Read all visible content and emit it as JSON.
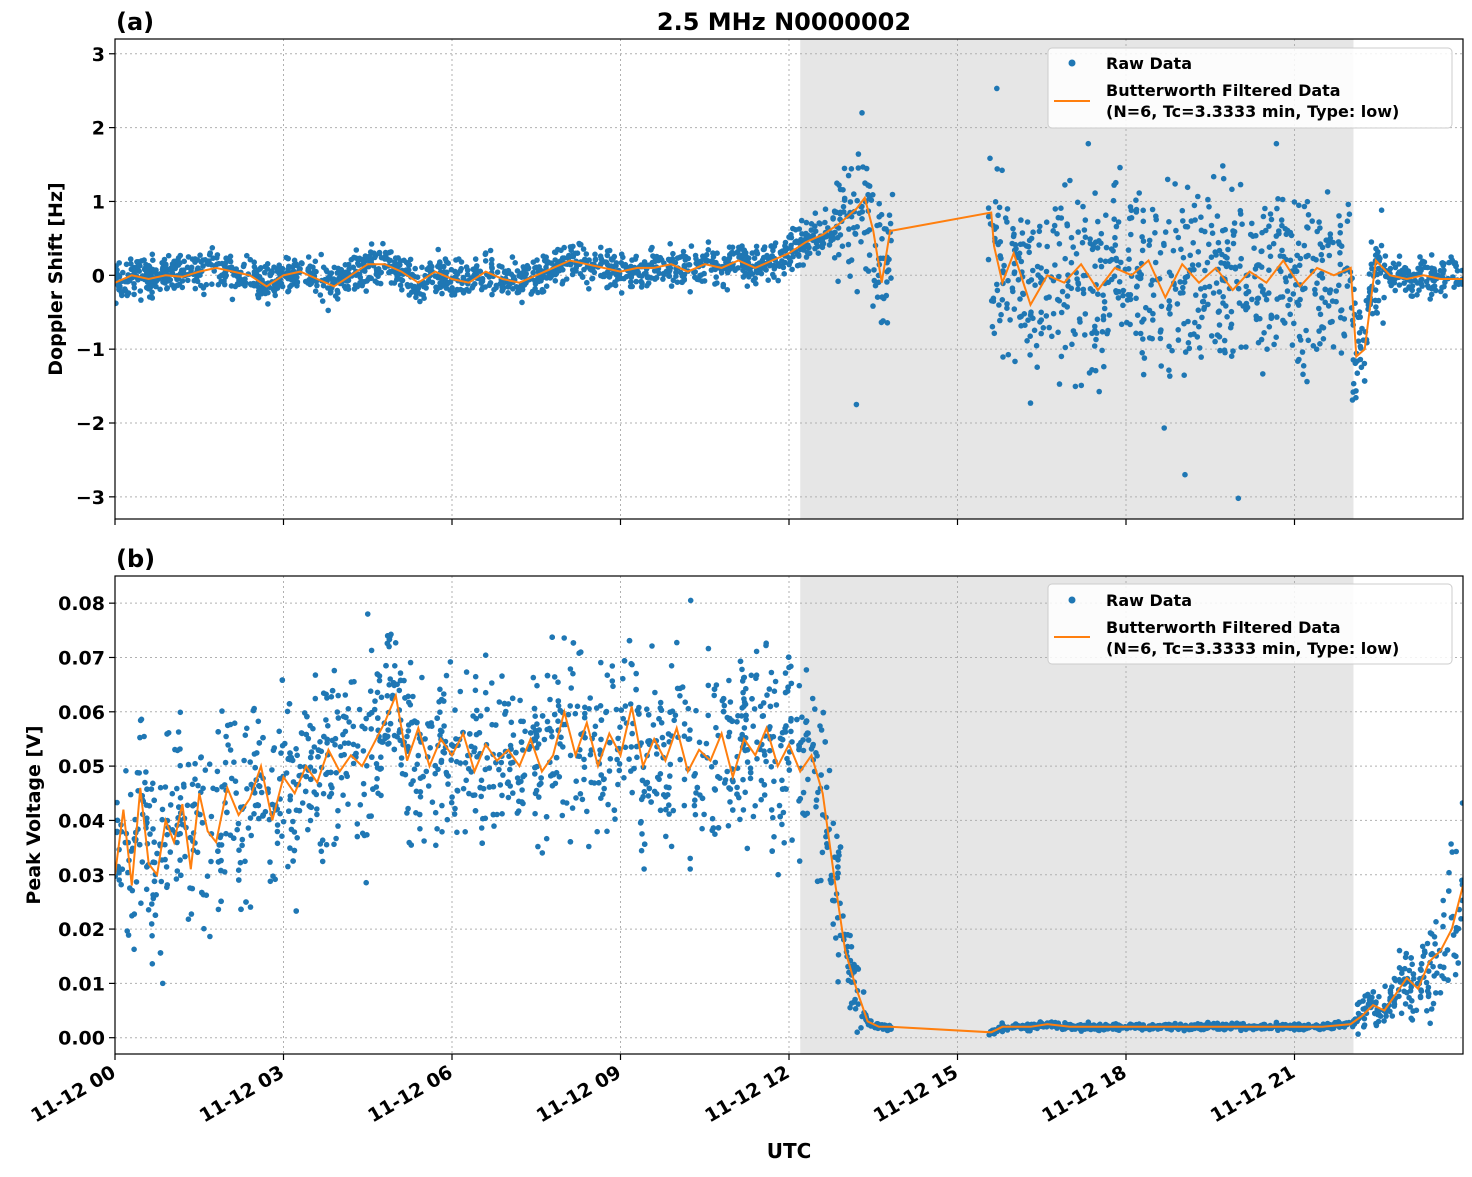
{
  "figure": {
    "title": "2.5 MHz N0000002",
    "xlabel": "UTC",
    "x_ticks": [
      "11-12 00",
      "11-12 03",
      "11-12 06",
      "11-12 09",
      "11-12 12",
      "11-12 15",
      "11-12 18",
      "11-12 21"
    ],
    "shaded_region_utc_hours": [
      12.2,
      22.05
    ],
    "colors": {
      "raw": "#1f77b4",
      "filtered": "#ff7f0e",
      "shade": "#e6e6e6",
      "grid": "#b0b0b0"
    }
  },
  "chart_data": [
    {
      "type": "scatter",
      "panel_label": "(a)",
      "title": "2.5 MHz N0000002",
      "xlabel": "",
      "ylabel": "Doppler Shift [Hz]",
      "x_unit": "UTC hours since 11-12 00",
      "xlim": [
        0,
        24
      ],
      "ylim": [
        -3.3,
        3.2
      ],
      "yticks": [
        -3,
        -2,
        -1,
        0,
        1,
        2,
        3
      ],
      "ytick_labels": [
        "−3",
        "−2",
        "−1",
        "0",
        "1",
        "2",
        "3"
      ],
      "grid": true,
      "legend_position": "top-right",
      "legend": [
        "Raw Data",
        "Butterworth Filtered Data",
        "(N=6, Tc=3.3333 min, Type: low)"
      ],
      "series": [
        {
          "name": "Butterworth Filtered Data",
          "kind": "line",
          "x": [
            0,
            0.3,
            0.6,
            0.9,
            1.2,
            1.5,
            1.8,
            2.1,
            2.4,
            2.7,
            3.0,
            3.3,
            3.6,
            3.9,
            4.2,
            4.5,
            4.8,
            5.1,
            5.4,
            5.7,
            6.0,
            6.3,
            6.6,
            6.9,
            7.2,
            7.5,
            7.8,
            8.1,
            8.4,
            8.7,
            9.0,
            9.3,
            9.6,
            9.9,
            10.2,
            10.5,
            10.8,
            11.1,
            11.4,
            11.7,
            12.0,
            12.3,
            12.6,
            12.9,
            13.2,
            13.35,
            13.5,
            13.65,
            13.8,
            15.6,
            15.65,
            15.8,
            16.0,
            16.3,
            16.6,
            16.9,
            17.2,
            17.5,
            17.8,
            18.1,
            18.4,
            18.7,
            19.0,
            19.3,
            19.6,
            19.9,
            20.2,
            20.5,
            20.8,
            21.1,
            21.4,
            21.7,
            22.0,
            22.1,
            22.25,
            22.45,
            22.7,
            23.0,
            23.3,
            23.6,
            24.0
          ],
          "y": [
            -0.1,
            0.0,
            -0.05,
            0.0,
            -0.02,
            0.05,
            0.1,
            0.05,
            0.0,
            -0.15,
            0.0,
            0.05,
            -0.05,
            -0.15,
            0.0,
            0.15,
            0.15,
            0.05,
            -0.1,
            0.05,
            -0.05,
            -0.1,
            0.05,
            -0.05,
            -0.1,
            0.0,
            0.1,
            0.2,
            0.15,
            0.1,
            0.05,
            0.1,
            0.1,
            0.15,
            0.05,
            0.15,
            0.1,
            0.2,
            0.1,
            0.2,
            0.3,
            0.45,
            0.55,
            0.7,
            0.9,
            1.05,
            0.6,
            -0.1,
            0.6,
            0.85,
            0.4,
            -0.1,
            0.3,
            -0.4,
            0.0,
            -0.1,
            0.15,
            -0.2,
            0.1,
            0.0,
            0.2,
            -0.3,
            0.15,
            -0.1,
            0.1,
            -0.2,
            0.05,
            -0.1,
            0.2,
            -0.15,
            0.1,
            0.0,
            0.1,
            -1.1,
            -1.0,
            0.2,
            0.0,
            -0.05,
            0.0,
            -0.05,
            -0.05
          ]
        },
        {
          "name": "Raw Data",
          "kind": "scatter",
          "density": "dense points surrounding the filtered trace; spread about ±0.3 Hz outside the shaded interval and about ±1.8 Hz between 15.6 h and 22 h",
          "notable_points": [
            {
              "x": 15.7,
              "y": 2.53
            },
            {
              "x": 19.05,
              "y": -2.7
            },
            {
              "x": 20.0,
              "y": -3.02
            },
            {
              "x": 13.3,
              "y": 2.2
            },
            {
              "x": 13.2,
              "y": -1.75
            }
          ]
        }
      ]
    },
    {
      "type": "scatter",
      "panel_label": "(b)",
      "title": "",
      "xlabel": "UTC",
      "ylabel": "Peak Voltage [V]",
      "x_unit": "UTC hours since 11-12 00",
      "xlim": [
        0,
        24
      ],
      "ylim": [
        -0.003,
        0.085
      ],
      "yticks": [
        0.0,
        0.01,
        0.02,
        0.03,
        0.04,
        0.05,
        0.06,
        0.07,
        0.08
      ],
      "ytick_labels": [
        "0.00",
        "0.01",
        "0.02",
        "0.03",
        "0.04",
        "0.05",
        "0.06",
        "0.07",
        "0.08"
      ],
      "grid": true,
      "legend_position": "top-right",
      "legend": [
        "Raw Data",
        "Butterworth Filtered Data",
        "(N=6, Tc=3.3333 min, Type: low)"
      ],
      "series": [
        {
          "name": "Butterworth Filtered Data",
          "kind": "line",
          "x": [
            0,
            0.15,
            0.3,
            0.45,
            0.6,
            0.75,
            0.9,
            1.05,
            1.2,
            1.35,
            1.5,
            1.65,
            1.8,
            2.0,
            2.2,
            2.4,
            2.6,
            2.8,
            3.0,
            3.2,
            3.4,
            3.6,
            3.8,
            4.0,
            4.2,
            4.4,
            4.6,
            4.8,
            5.0,
            5.2,
            5.4,
            5.6,
            5.8,
            6.0,
            6.2,
            6.4,
            6.6,
            6.8,
            7.0,
            7.2,
            7.4,
            7.6,
            7.8,
            8.0,
            8.2,
            8.4,
            8.6,
            8.8,
            9.0,
            9.2,
            9.4,
            9.6,
            9.8,
            10.0,
            10.2,
            10.4,
            10.6,
            10.8,
            11.0,
            11.2,
            11.4,
            11.6,
            11.8,
            12.0,
            12.2,
            12.4,
            12.6,
            12.8,
            13.0,
            13.2,
            13.4,
            13.6,
            13.8,
            15.6,
            15.8,
            16.0,
            16.3,
            16.6,
            17.0,
            17.5,
            18.0,
            18.5,
            19.0,
            19.5,
            20.0,
            20.5,
            21.0,
            21.5,
            22.0,
            22.2,
            22.4,
            22.6,
            22.8,
            23.0,
            23.2,
            23.4,
            23.6,
            23.8,
            24.0
          ],
          "y": [
            0.03,
            0.042,
            0.028,
            0.046,
            0.032,
            0.03,
            0.04,
            0.036,
            0.043,
            0.031,
            0.045,
            0.038,
            0.036,
            0.046,
            0.041,
            0.044,
            0.05,
            0.04,
            0.048,
            0.045,
            0.05,
            0.047,
            0.053,
            0.049,
            0.052,
            0.05,
            0.054,
            0.058,
            0.063,
            0.051,
            0.057,
            0.05,
            0.055,
            0.052,
            0.056,
            0.049,
            0.054,
            0.051,
            0.053,
            0.05,
            0.055,
            0.049,
            0.052,
            0.06,
            0.052,
            0.058,
            0.05,
            0.056,
            0.052,
            0.061,
            0.05,
            0.055,
            0.051,
            0.057,
            0.049,
            0.053,
            0.051,
            0.056,
            0.048,
            0.055,
            0.052,
            0.057,
            0.05,
            0.054,
            0.049,
            0.052,
            0.045,
            0.03,
            0.016,
            0.009,
            0.003,
            0.002,
            0.002,
            0.001,
            0.002,
            0.002,
            0.002,
            0.0025,
            0.002,
            0.002,
            0.002,
            0.002,
            0.002,
            0.002,
            0.002,
            0.002,
            0.002,
            0.002,
            0.0025,
            0.004,
            0.006,
            0.005,
            0.008,
            0.011,
            0.009,
            0.014,
            0.016,
            0.02,
            0.028
          ]
        },
        {
          "name": "Raw Data",
          "kind": "scatter",
          "density": "dense points; about 0.015–0.08 V from 0 h to 12.5 h, collapsing to about 0.002 V between 13.8 h and 22 h, recovering to about 0.045 V by 24 h",
          "notable_points": [
            {
              "x": 10.25,
              "y": 0.0805
            },
            {
              "x": 0.85,
              "y": 0.01
            },
            {
              "x": 4.5,
              "y": 0.078
            }
          ]
        }
      ]
    }
  ]
}
